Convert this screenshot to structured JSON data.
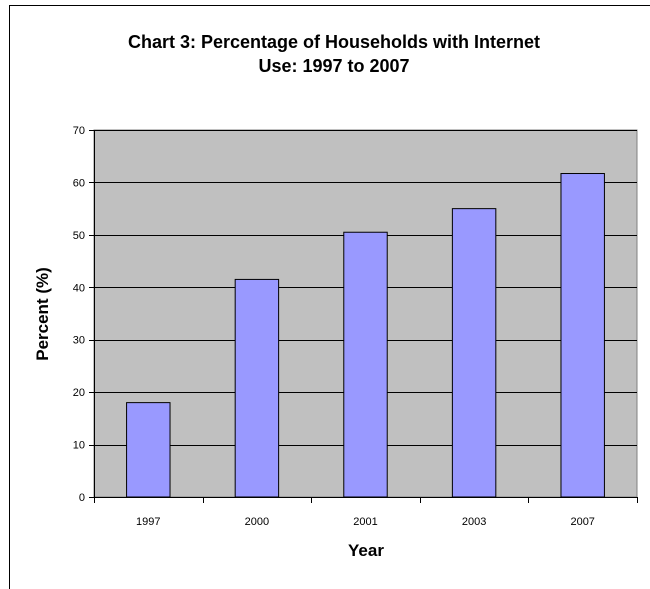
{
  "chart_data": {
    "type": "bar",
    "title_lines": [
      "Chart 3: Percentage of Households with Internet",
      "Use: 1997 to 2007"
    ],
    "xlabel": "Year",
    "ylabel": "Percent (%)",
    "categories": [
      "1997",
      "2000",
      "2001",
      "2003",
      "2007"
    ],
    "values": [
      18,
      41.5,
      50.5,
      55,
      61.7
    ],
    "ylim": [
      0,
      70
    ],
    "yticks": [
      0,
      10,
      20,
      30,
      40,
      50,
      60,
      70
    ],
    "grid": true,
    "legend": "none",
    "colors": {
      "bar_fill": "#9999ff",
      "bar_stroke": "#000000",
      "plot_background": "#c0c0c0",
      "gridline": "#000000"
    }
  }
}
